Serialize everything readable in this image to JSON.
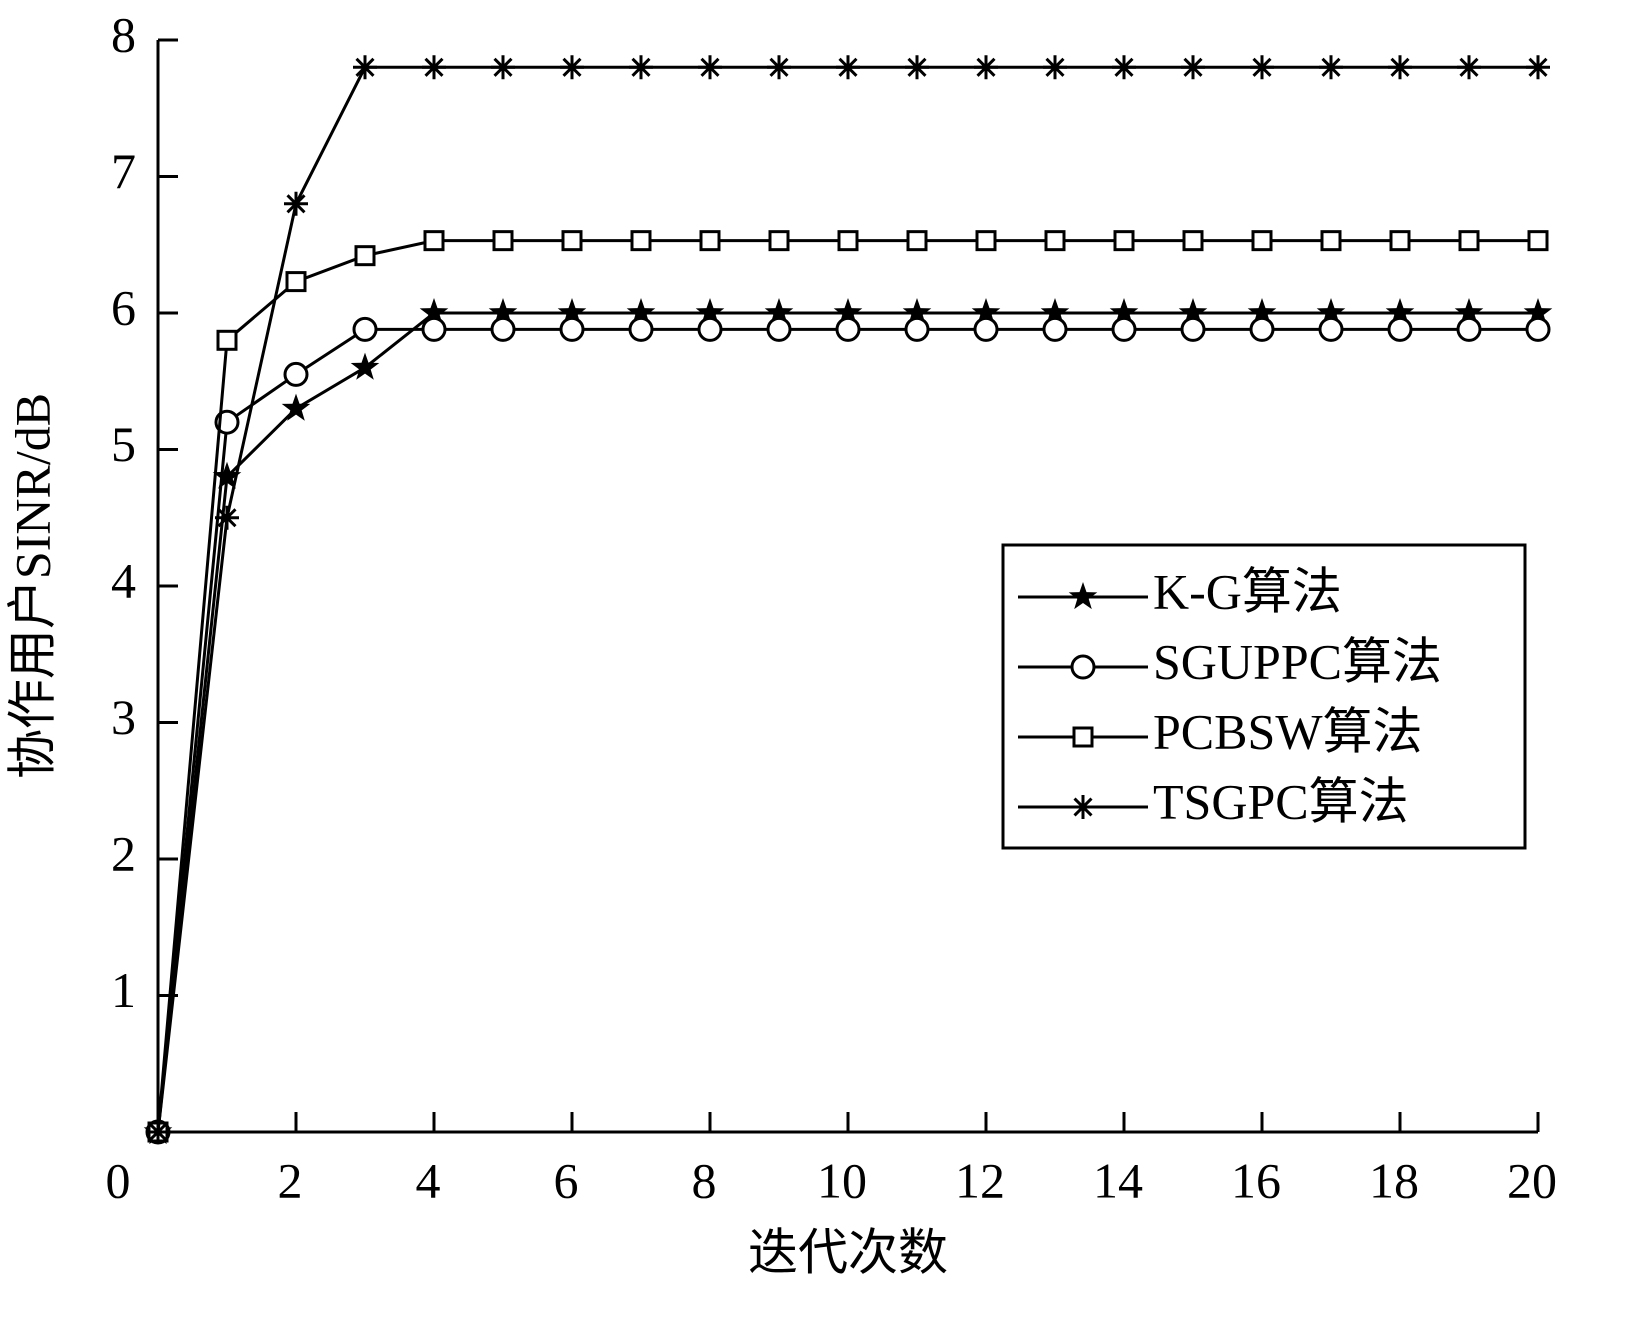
{
  "chart_data": {
    "type": "line",
    "xlabel": "迭代次数",
    "ylabel": "协作用户SINR/dB",
    "x": [
      0,
      1,
      2,
      3,
      4,
      5,
      6,
      7,
      8,
      9,
      10,
      11,
      12,
      13,
      14,
      15,
      16,
      17,
      18,
      19,
      20
    ],
    "xlim": [
      0,
      20
    ],
    "xticks": [
      0,
      2,
      4,
      6,
      8,
      10,
      12,
      14,
      16,
      18,
      20
    ],
    "ylim": [
      0,
      8
    ],
    "yticks": [
      1,
      2,
      3,
      4,
      5,
      6,
      7,
      8
    ],
    "grid": false,
    "legend": "right",
    "series": [
      {
        "name": "K-G算法",
        "color": "#000000",
        "marker": "star",
        "values": [
          0,
          4.8,
          5.3,
          5.6,
          6.0,
          6.0,
          6.0,
          6.0,
          6.0,
          6.0,
          6.0,
          6.0,
          6.0,
          6.0,
          6.0,
          6.0,
          6.0,
          6.0,
          6.0,
          6.0,
          6.0
        ]
      },
      {
        "name": "SGUPPC算法",
        "color": "#000000",
        "marker": "circle",
        "values": [
          0,
          5.2,
          5.55,
          5.88,
          5.88,
          5.88,
          5.88,
          5.88,
          5.88,
          5.88,
          5.88,
          5.88,
          5.88,
          5.88,
          5.88,
          5.88,
          5.88,
          5.88,
          5.88,
          5.88,
          5.88
        ]
      },
      {
        "name": "PCBSW算法",
        "color": "#000000",
        "marker": "square",
        "values": [
          0,
          5.8,
          6.23,
          6.42,
          6.53,
          6.53,
          6.53,
          6.53,
          6.53,
          6.53,
          6.53,
          6.53,
          6.53,
          6.53,
          6.53,
          6.53,
          6.53,
          6.53,
          6.53,
          6.53,
          6.53
        ]
      },
      {
        "name": "TSGPC算法",
        "color": "#000000",
        "marker": "asterisk",
        "values": [
          0,
          4.5,
          6.8,
          7.8,
          7.8,
          7.8,
          7.8,
          7.8,
          7.8,
          7.8,
          7.8,
          7.8,
          7.8,
          7.8,
          7.8,
          7.8,
          7.8,
          7.8,
          7.8,
          7.8,
          7.8
        ]
      }
    ]
  }
}
